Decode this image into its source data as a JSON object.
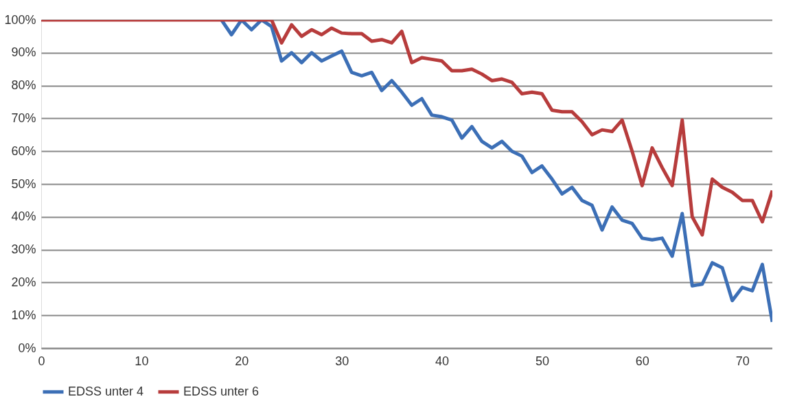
{
  "chart_data": {
    "type": "line",
    "x": [
      0,
      1,
      2,
      3,
      4,
      5,
      6,
      7,
      8,
      9,
      10,
      11,
      12,
      13,
      14,
      15,
      16,
      17,
      18,
      19,
      20,
      21,
      22,
      23,
      24,
      25,
      26,
      27,
      28,
      29,
      30,
      31,
      32,
      33,
      34,
      35,
      36,
      37,
      38,
      39,
      40,
      41,
      42,
      43,
      44,
      45,
      46,
      47,
      48,
      49,
      50,
      51,
      52,
      53,
      54,
      55,
      56,
      57,
      58,
      59,
      60,
      61,
      62,
      63,
      64,
      65,
      66,
      67,
      68,
      69,
      70,
      71,
      72,
      73
    ],
    "series": [
      {
        "name": "EDSS unter 4",
        "color": "#3c6fb6",
        "values": [
          null,
          null,
          null,
          null,
          null,
          null,
          null,
          null,
          null,
          null,
          null,
          null,
          null,
          null,
          null,
          null,
          null,
          null,
          100,
          95.5,
          100,
          97,
          100,
          98,
          87.5,
          90,
          87,
          90,
          87.5,
          89,
          90.5,
          84,
          83,
          84,
          78.5,
          81.5,
          78,
          74,
          76,
          71,
          70.5,
          69.5,
          64,
          67.5,
          63,
          61,
          63,
          60,
          58.5,
          53.5,
          55.5,
          51.5,
          47,
          49,
          45,
          43.5,
          36,
          43,
          39,
          38,
          33.5,
          33,
          33.5,
          28,
          41,
          19,
          19.5,
          26,
          24.5,
          14.5,
          18.5,
          17.5,
          25.5,
          8
        ]
      },
      {
        "name": "EDSS unter 6",
        "color": "#b73c3c",
        "values": [
          100,
          100,
          100,
          100,
          100,
          100,
          100,
          100,
          100,
          100,
          100,
          100,
          100,
          100,
          100,
          100,
          100,
          100,
          100,
          100,
          100,
          100,
          100,
          100,
          93,
          98.5,
          95,
          97,
          95.5,
          97.5,
          96,
          95.8,
          95.8,
          93.5,
          94,
          93,
          96.5,
          87,
          88.5,
          88,
          87.5,
          84.5,
          84.5,
          85,
          83.5,
          81.5,
          82,
          81,
          77.5,
          78,
          77.5,
          72.5,
          72,
          72,
          69,
          65,
          66.5,
          66,
          69.5,
          60,
          49.5,
          61,
          55,
          49.5,
          69.5,
          40,
          34.5,
          51.5,
          49,
          47.5,
          45,
          45,
          38.5,
          48
        ]
      }
    ],
    "xlim": [
      0,
      73
    ],
    "xticks": [
      0,
      10,
      20,
      30,
      40,
      50,
      60,
      70
    ],
    "ylim": [
      0,
      100
    ],
    "yticks": [
      {
        "value": 0,
        "label": "0%"
      },
      {
        "value": 10,
        "label": "10%"
      },
      {
        "value": 20,
        "label": "20%"
      },
      {
        "value": 30,
        "label": "30%"
      },
      {
        "value": 40,
        "label": "40%"
      },
      {
        "value": 50,
        "label": "50%"
      },
      {
        "value": 60,
        "label": "60%"
      },
      {
        "value": 70,
        "label": "70%"
      },
      {
        "value": 80,
        "label": "80%"
      },
      {
        "value": 90,
        "label": "90%"
      },
      {
        "value": 100,
        "label": "100%"
      }
    ],
    "grid": "y",
    "legend": "bottom",
    "marker": "none",
    "line_style": "solid"
  }
}
